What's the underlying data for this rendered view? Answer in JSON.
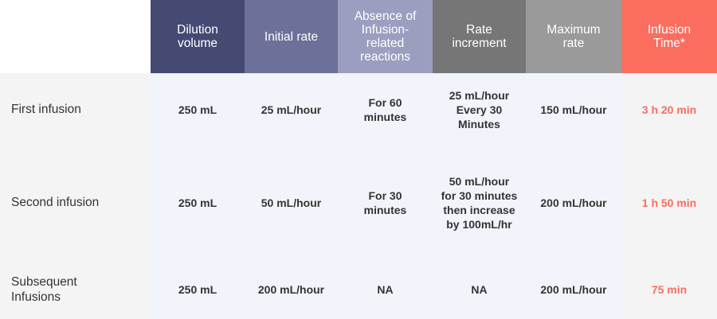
{
  "header": {
    "col0": "",
    "col1": "Dilution\nvolume",
    "col2": "Initial rate",
    "col3": "Absence of\nInfusion-\nrelated\nreactions",
    "col4": "Rate\nincrement",
    "col5": "Maximum\nrate",
    "col6": "Infusion\nTime*"
  },
  "rows": [
    {
      "label": "First infusion",
      "dilution": "250 mL",
      "initial_rate": "25 mL/hour",
      "absence": "For 60\nminutes",
      "increment": "25 mL/hour\nEvery 30\nMinutes",
      "max_rate": "150 mL/hour",
      "time": "3 h 20 min"
    },
    {
      "label": "Second infusion",
      "dilution": "250 mL",
      "initial_rate": "50 mL/hour",
      "absence": "For 30\nminutes",
      "increment": "50 mL/hour\nfor 30 minutes\nthen increase\nby 100mL/hr",
      "max_rate": "200 mL/hour",
      "time": "1 h 50 min"
    },
    {
      "label": "Subsequent\nInfusions",
      "dilution": "250 mL",
      "initial_rate": "200 mL/hour",
      "absence": "NA",
      "increment": "NA",
      "max_rate": "200 mL/hour",
      "time": "75 min"
    }
  ],
  "colors": {
    "header_dilution": "#454a73",
    "header_initial": "#6d7199",
    "header_absence": "#9b9ebe",
    "header_increment": "#767676",
    "header_maximum": "#9a9a9a",
    "header_time": "#fa6d5f",
    "time_text": "#fa6d5f"
  }
}
